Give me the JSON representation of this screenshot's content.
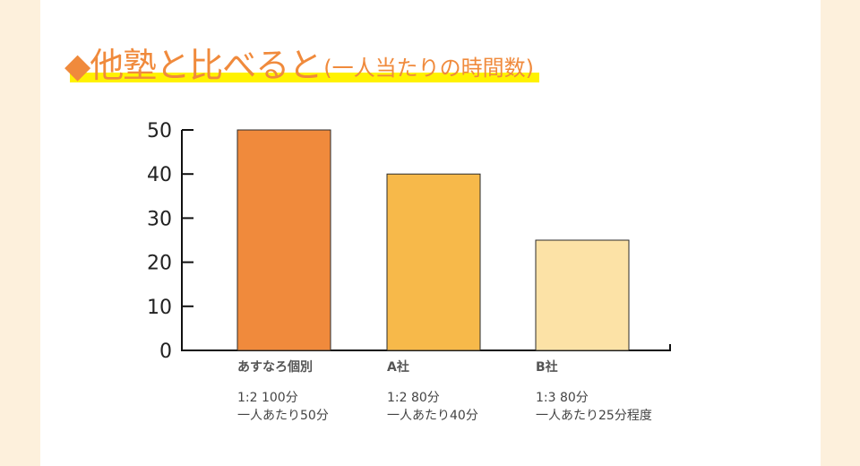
{
  "heading": {
    "title": "◆他塾と比べると",
    "note": "(一人当たりの時間数)"
  },
  "chart_data": {
    "type": "bar",
    "title": "◆他塾と比べると(一人当たりの時間数)",
    "xlabel": "",
    "ylabel": "",
    "ylim": [
      0,
      50
    ],
    "yticks": [
      "0",
      "10",
      "20",
      "30",
      "40",
      "50"
    ],
    "categories": [
      "あすなろ個別",
      "A社",
      "B社"
    ],
    "values": [
      50,
      40,
      25
    ],
    "bar_colors": [
      "#f08a3c",
      "#f7b94a",
      "#fce2a6"
    ],
    "category_notes": [
      [
        "1:2 100分",
        "一人あたり50分"
      ],
      [
        "1:2 80分",
        "一人あたり40分"
      ],
      [
        "1:3 80分",
        "一人あたり25分程度"
      ]
    ]
  }
}
